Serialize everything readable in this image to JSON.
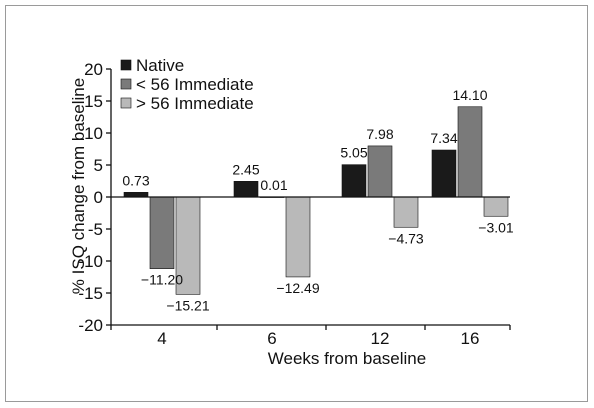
{
  "colors": {
    "native": "#1a1a1a",
    "imm_lt56": "#7a7a7a",
    "imm_gt56": "#b9b9b9",
    "axis": "#111111",
    "border": "#9a9a9a"
  },
  "chart_data": {
    "type": "bar",
    "title": "",
    "xlabel": "Weeks from baseline",
    "ylabel": "% ISQ change from baseline",
    "categories": [
      "4",
      "6",
      "12",
      "16"
    ],
    "ylim": [
      -20,
      20
    ],
    "yticks": [
      "20",
      "15",
      "10",
      "5",
      "0",
      "-5",
      "-10",
      "-15",
      "-20"
    ],
    "ytick_values": [
      20,
      15,
      10,
      5,
      0,
      -5,
      -10,
      -15,
      -20
    ],
    "grid": false,
    "legend_position": "top-left",
    "series": [
      {
        "name": "Native",
        "values": [
          0.73,
          2.45,
          5.05,
          7.34
        ],
        "labels": [
          "0.73",
          "2.45",
          "5.05",
          "7.34"
        ]
      },
      {
        "name": "< 56 Immediate",
        "values": [
          -11.2,
          0.01,
          7.98,
          14.1
        ],
        "labels": [
          "−11.20",
          "0.01",
          "7.98",
          "14.10"
        ]
      },
      {
        "name": "> 56 Immediate",
        "values": [
          -15.21,
          -12.49,
          -4.73,
          -3.01
        ],
        "labels": [
          "−15.21",
          "−12.49",
          "−4.73",
          "−3.01"
        ]
      }
    ]
  }
}
